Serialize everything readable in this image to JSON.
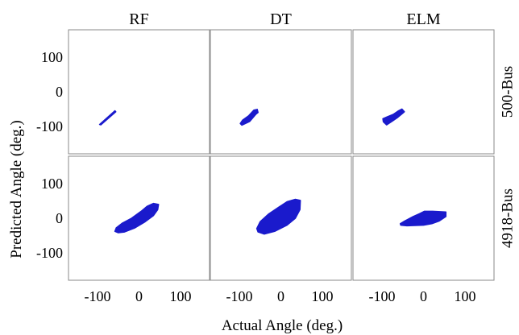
{
  "figure": {
    "xlabel": "Actual Angle (deg.)",
    "ylabel": "Predicted Angle (deg.)",
    "columns": [
      "RF",
      "DT",
      "ELM"
    ],
    "rows": [
      "500-Bus",
      "4918-Bus"
    ]
  },
  "chart_data": {
    "type": "scatter",
    "xlabel": "Actual Angle (deg.)",
    "ylabel": "Predicted Angle (deg.)",
    "xlim": [
      -170,
      170
    ],
    "ylim": [
      -180,
      180
    ],
    "xticks": [
      -100,
      0,
      100
    ],
    "yticks": [
      -100,
      0,
      100
    ],
    "xtick_labels": [
      "-100",
      "0",
      "100"
    ],
    "ytick_labels": [
      "-100",
      "0",
      "100"
    ],
    "grid": false,
    "marker_color": "#1a1acc",
    "panels": [
      {
        "row": "500-Bus",
        "column": "RF",
        "regions": [
          {
            "polygon": [
              [
                -95,
                -95
              ],
              [
                -92,
                -96
              ],
              [
                -56,
                -58
              ],
              [
                -58,
                -55
              ]
            ]
          }
        ]
      },
      {
        "row": "500-Bus",
        "column": "DT",
        "regions": [
          {
            "polygon": [
              [
                -98,
                -92
              ],
              [
                -94,
                -97
              ],
              [
                -75,
                -86
              ],
              [
                -60,
                -65
              ],
              [
                -55,
                -60
              ],
              [
                -57,
                -51
              ],
              [
                -65,
                -53
              ],
              [
                -78,
                -70
              ],
              [
                -92,
                -82
              ]
            ]
          }
        ]
      },
      {
        "row": "500-Bus",
        "column": "ELM",
        "regions": [
          {
            "polygon": [
              [
                -97,
                -87
              ],
              [
                -89,
                -96
              ],
              [
                -75,
                -85
              ],
              [
                -62,
                -74
              ],
              [
                -50,
                -62
              ],
              [
                -46,
                -58
              ],
              [
                -52,
                -50
              ],
              [
                -60,
                -55
              ],
              [
                -72,
                -65
              ],
              [
                -88,
                -73
              ],
              [
                -98,
                -78
              ]
            ]
          }
        ]
      },
      {
        "row": "4918-Bus",
        "column": "RF",
        "regions": [
          {
            "polygon": [
              [
                -58,
                -38
              ],
              [
                -50,
                -42
              ],
              [
                -35,
                -40
              ],
              [
                -10,
                -28
              ],
              [
                15,
                -10
              ],
              [
                35,
                8
              ],
              [
                45,
                25
              ],
              [
                47,
                40
              ],
              [
                35,
                43
              ],
              [
                20,
                35
              ],
              [
                5,
                20
              ],
              [
                -18,
                0
              ],
              [
                -40,
                -14
              ],
              [
                -55,
                -28
              ]
            ]
          }
        ]
      },
      {
        "row": "4918-Bus",
        "column": "DT",
        "regions": [
          {
            "polygon": [
              [
                -55,
                -40
              ],
              [
                -40,
                -46
              ],
              [
                -15,
                -38
              ],
              [
                15,
                -20
              ],
              [
                35,
                0
              ],
              [
                46,
                25
              ],
              [
                47,
                52
              ],
              [
                35,
                55
              ],
              [
                15,
                48
              ],
              [
                -5,
                32
              ],
              [
                -30,
                12
              ],
              [
                -50,
                -10
              ],
              [
                -58,
                -30
              ]
            ]
          }
        ]
      },
      {
        "row": "4918-Bus",
        "column": "ELM",
        "regions": [
          {
            "polygon": [
              [
                -55,
                -20
              ],
              [
                -40,
                -22
              ],
              [
                0,
                -20
              ],
              [
                20,
                -16
              ],
              [
                38,
                -8
              ],
              [
                54,
                5
              ],
              [
                54,
                18
              ],
              [
                22,
                20
              ],
              [
                2,
                20
              ],
              [
                -10,
                13
              ],
              [
                -25,
                5
              ],
              [
                -45,
                -8
              ],
              [
                -56,
                -16
              ]
            ]
          }
        ]
      }
    ]
  }
}
